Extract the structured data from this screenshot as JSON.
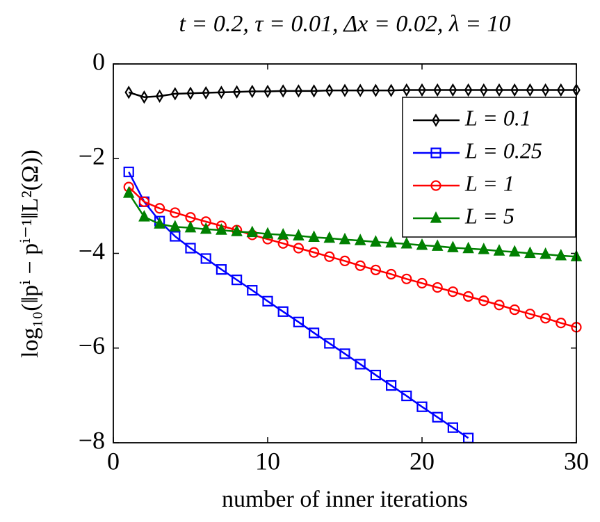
{
  "chart_data": {
    "type": "line",
    "title": "t = 0.2, τ = 0.01, Δx = 0.02, λ = 10",
    "x_label": "number of inner iterations",
    "y_label": "log₁₀(‖pⁱ − pⁱ⁻¹‖L²(Ω))",
    "x": [
      1,
      2,
      3,
      4,
      5,
      6,
      7,
      8,
      9,
      10,
      11,
      12,
      13,
      14,
      15,
      16,
      17,
      18,
      19,
      20,
      21,
      22,
      23,
      24,
      25,
      26,
      27,
      28,
      29,
      30
    ],
    "series": [
      {
        "name": "L = 0.1",
        "color": "#000000",
        "marker": "diamond",
        "values": [
          -0.6,
          -0.7,
          -0.68,
          -0.63,
          -0.62,
          -0.61,
          -0.6,
          -0.59,
          -0.58,
          -0.58,
          -0.57,
          -0.57,
          -0.57,
          -0.56,
          -0.56,
          -0.56,
          -0.56,
          -0.56,
          -0.55,
          -0.55,
          -0.55,
          -0.55,
          -0.55,
          -0.55,
          -0.55,
          -0.55,
          -0.55,
          -0.55,
          -0.55,
          -0.55
        ]
      },
      {
        "name": "L = 0.25",
        "color": "#0000ff",
        "marker": "square",
        "values": [
          -2.28,
          -2.91,
          -3.32,
          -3.64,
          -3.89,
          -4.11,
          -4.34,
          -4.56,
          -4.78,
          -5.01,
          -5.23,
          -5.45,
          -5.68,
          -5.9,
          -6.12,
          -6.34,
          -6.57,
          -6.79,
          -7.01,
          -7.24,
          -7.46,
          -7.68,
          -7.9,
          null,
          null,
          null,
          null,
          null,
          null,
          null
        ]
      },
      {
        "name": "L = 1",
        "color": "#ff0000",
        "marker": "circle",
        "values": [
          -2.6,
          -2.91,
          -3.05,
          -3.14,
          -3.24,
          -3.33,
          -3.42,
          -3.51,
          -3.61,
          -3.7,
          -3.79,
          -3.89,
          -3.98,
          -4.07,
          -4.16,
          -4.26,
          -4.35,
          -4.44,
          -4.54,
          -4.63,
          -4.72,
          -4.81,
          -4.91,
          -5.0,
          -5.09,
          -5.19,
          -5.28,
          -5.37,
          -5.47,
          -5.56
        ]
      },
      {
        "name": "L = 5",
        "color": "#008000",
        "marker": "triangle",
        "values": [
          -2.73,
          -3.23,
          -3.38,
          -3.44,
          -3.46,
          -3.49,
          -3.51,
          -3.54,
          -3.56,
          -3.59,
          -3.61,
          -3.63,
          -3.66,
          -3.68,
          -3.71,
          -3.73,
          -3.76,
          -3.78,
          -3.8,
          -3.83,
          -3.85,
          -3.88,
          -3.9,
          -3.92,
          -3.95,
          -3.97,
          -4.0,
          -4.02,
          -4.05,
          -4.07
        ]
      }
    ],
    "xlim": [
      0,
      30
    ],
    "ylim": [
      -8,
      0
    ],
    "xticks": [
      0,
      10,
      20,
      30
    ],
    "yticks": [
      {
        "value": -8,
        "label": "−8"
      },
      {
        "value": -6,
        "label": "−6"
      },
      {
        "value": -4,
        "label": "−4"
      },
      {
        "value": -2,
        "label": "−2"
      },
      0
    ],
    "grid": false,
    "legend_position": "upper right"
  }
}
